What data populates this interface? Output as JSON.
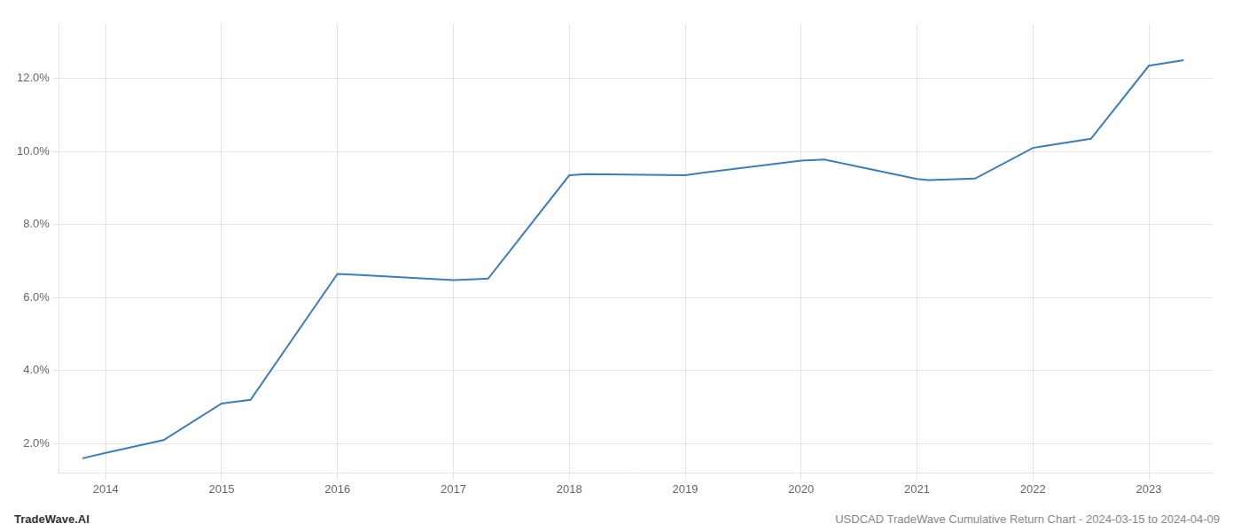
{
  "chart_data": {
    "type": "line",
    "x": [
      2013.8,
      2014.0,
      2014.5,
      2015.0,
      2015.25,
      2016.0,
      2016.2,
      2017.0,
      2017.15,
      2017.3,
      2018.0,
      2018.15,
      2019.0,
      2019.15,
      2020.0,
      2020.2,
      2021.0,
      2021.1,
      2021.5,
      2022.0,
      2022.1,
      2022.5,
      2023.0,
      2023.3
    ],
    "values": [
      1.6,
      1.75,
      2.1,
      3.1,
      3.2,
      6.65,
      6.62,
      6.48,
      6.5,
      6.52,
      9.35,
      9.38,
      9.35,
      9.42,
      9.75,
      9.78,
      9.25,
      9.22,
      9.26,
      10.1,
      10.15,
      10.35,
      12.35,
      12.5
    ],
    "color": "#3a7ebf",
    "xlim": [
      2013.6,
      2023.55
    ],
    "ylim": [
      1.2,
      13.5
    ],
    "xticks": [
      2014,
      2015,
      2016,
      2017,
      2018,
      2019,
      2020,
      2021,
      2022,
      2023
    ],
    "yticks": [
      {
        "value": 2.0,
        "label": "2.0%"
      },
      {
        "value": 4.0,
        "label": "4.0%"
      },
      {
        "value": 6.0,
        "label": "6.0%"
      },
      {
        "value": 8.0,
        "label": "8.0%"
      },
      {
        "value": 10.0,
        "label": "10.0%"
      },
      {
        "value": 12.0,
        "label": "12.0%"
      }
    ],
    "grid": true,
    "annotations": [
      "TradeWave.AI",
      "USDCAD TradeWave Cumulative Return Chart - 2024-03-15 to 2024-04-09"
    ]
  }
}
